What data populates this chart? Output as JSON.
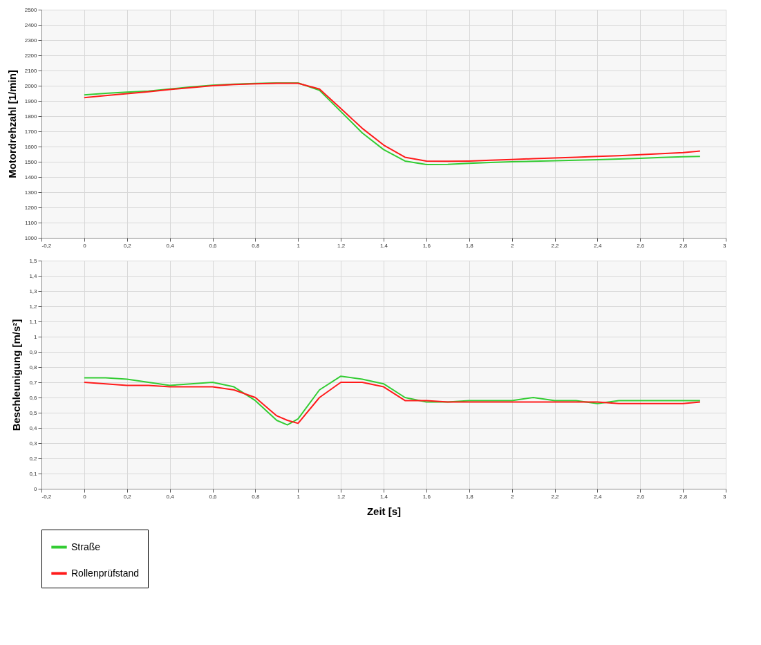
{
  "chart_data": [
    {
      "type": "line",
      "ylabel": "Motordrehzahl [1/min]",
      "grid": true,
      "xlim": [
        -0.2,
        3
      ],
      "xticks": [
        {
          "value": -0.2,
          "label": "-0,2"
        },
        0,
        {
          "value": 0.2,
          "label": "0,2"
        },
        {
          "value": 0.4,
          "label": "0,4"
        },
        {
          "value": 0.6,
          "label": "0,6"
        },
        {
          "value": 0.8,
          "label": "0,8"
        },
        1,
        {
          "value": 1.2,
          "label": "1,2"
        },
        {
          "value": 1.4,
          "label": "1,4"
        },
        {
          "value": 1.6,
          "label": "1,6"
        },
        {
          "value": 1.8,
          "label": "1,8"
        },
        2,
        {
          "value": 2.2,
          "label": "2,2"
        },
        {
          "value": 2.4,
          "label": "2,4"
        },
        {
          "value": 2.6,
          "label": "2,6"
        },
        {
          "value": 2.8,
          "label": "2,8"
        },
        3
      ],
      "ylim": [
        1000,
        2500
      ],
      "yticks": [
        1000,
        1100,
        1200,
        1300,
        1400,
        1500,
        1600,
        1700,
        1800,
        1900,
        2000,
        2100,
        2200,
        2300,
        2400,
        2500
      ],
      "series": [
        {
          "color": "#33cc33",
          "x": [
            0,
            0.1,
            0.2,
            0.3,
            0.4,
            0.5,
            0.6,
            0.7,
            0.8,
            0.9,
            1,
            1.1,
            1.2,
            1.3,
            1.4,
            1.5,
            1.6,
            1.7,
            1.8,
            1.9,
            2,
            2.1,
            2.2,
            2.3,
            2.4,
            2.5,
            2.6,
            2.7,
            2.8,
            2.88
          ],
          "values": [
            1940,
            1950,
            1958,
            1965,
            1978,
            1992,
            2003,
            2010,
            2015,
            2018,
            2018,
            1970,
            1830,
            1690,
            1580,
            1505,
            1482,
            1483,
            1490,
            1495,
            1500,
            1503,
            1507,
            1510,
            1514,
            1518,
            1523,
            1528,
            1533,
            1535
          ]
        },
        {
          "color": "#ff1a1a",
          "x": [
            0,
            0.1,
            0.2,
            0.3,
            0.4,
            0.5,
            0.6,
            0.7,
            0.8,
            0.9,
            1,
            1.1,
            1.2,
            1.3,
            1.4,
            1.5,
            1.6,
            1.7,
            1.8,
            1.9,
            2,
            2.1,
            2.2,
            2.3,
            2.4,
            2.5,
            2.6,
            2.7,
            2.8,
            2.88
          ],
          "values": [
            1922,
            1935,
            1948,
            1960,
            1975,
            1988,
            2000,
            2008,
            2013,
            2016,
            2016,
            1978,
            1850,
            1720,
            1610,
            1530,
            1505,
            1503,
            1505,
            1510,
            1515,
            1520,
            1525,
            1530,
            1535,
            1540,
            1547,
            1553,
            1560,
            1570
          ]
        }
      ]
    },
    {
      "type": "line",
      "ylabel": "Beschleunigung [m/s²]",
      "xlabel": "Zeit [s]",
      "grid": true,
      "legend": "bottom",
      "xlim": [
        -0.2,
        3
      ],
      "xticks": [
        {
          "value": -0.2,
          "label": "-0,2"
        },
        0,
        {
          "value": 0.2,
          "label": "0,2"
        },
        {
          "value": 0.4,
          "label": "0,4"
        },
        {
          "value": 0.6,
          "label": "0,6"
        },
        {
          "value": 0.8,
          "label": "0,8"
        },
        1,
        {
          "value": 1.2,
          "label": "1,2"
        },
        {
          "value": 1.4,
          "label": "1,4"
        },
        {
          "value": 1.6,
          "label": "1,6"
        },
        {
          "value": 1.8,
          "label": "1,8"
        },
        2,
        {
          "value": 2.2,
          "label": "2,2"
        },
        {
          "value": 2.4,
          "label": "2,4"
        },
        {
          "value": 2.6,
          "label": "2,6"
        },
        {
          "value": 2.8,
          "label": "2,8"
        },
        3
      ],
      "ylim": [
        0,
        1.5
      ],
      "yticks": [
        0,
        {
          "value": 0.1,
          "label": "0,1"
        },
        {
          "value": 0.2,
          "label": "0,2"
        },
        {
          "value": 0.3,
          "label": "0,3"
        },
        {
          "value": 0.4,
          "label": "0,4"
        },
        {
          "value": 0.5,
          "label": "0,5"
        },
        {
          "value": 0.6,
          "label": "0,6"
        },
        {
          "value": 0.7,
          "label": "0,7"
        },
        {
          "value": 0.8,
          "label": "0,8"
        },
        {
          "value": 0.9,
          "label": "0,9"
        },
        1,
        {
          "value": 1.1,
          "label": "1,1"
        },
        {
          "value": 1.2,
          "label": "1,2"
        },
        {
          "value": 1.3,
          "label": "1,3"
        },
        {
          "value": 1.4,
          "label": "1,4"
        },
        {
          "value": 1.5,
          "label": "1,5"
        }
      ],
      "series": [
        {
          "name": "Straße",
          "color": "#33cc33",
          "x": [
            0,
            0.1,
            0.2,
            0.3,
            0.4,
            0.5,
            0.6,
            0.7,
            0.8,
            0.9,
            0.95,
            1,
            1.1,
            1.2,
            1.3,
            1.4,
            1.5,
            1.6,
            1.7,
            1.8,
            1.9,
            2,
            2.1,
            2.2,
            2.3,
            2.4,
            2.5,
            2.6,
            2.7,
            2.8,
            2.88
          ],
          "values": [
            0.73,
            0.73,
            0.72,
            0.7,
            0.68,
            0.69,
            0.7,
            0.67,
            0.58,
            0.45,
            0.42,
            0.46,
            0.65,
            0.74,
            0.72,
            0.69,
            0.6,
            0.57,
            0.57,
            0.58,
            0.58,
            0.58,
            0.6,
            0.58,
            0.58,
            0.56,
            0.58,
            0.58,
            0.58,
            0.58,
            0.58
          ]
        },
        {
          "name": "Rollenprüfstand",
          "color": "#ff1a1a",
          "x": [
            0,
            0.1,
            0.2,
            0.3,
            0.4,
            0.5,
            0.6,
            0.7,
            0.8,
            0.9,
            0.95,
            1,
            1.1,
            1.2,
            1.3,
            1.4,
            1.5,
            1.6,
            1.7,
            1.8,
            1.9,
            2,
            2.1,
            2.2,
            2.3,
            2.4,
            2.5,
            2.6,
            2.7,
            2.8,
            2.88
          ],
          "values": [
            0.7,
            0.69,
            0.68,
            0.68,
            0.67,
            0.67,
            0.67,
            0.65,
            0.6,
            0.48,
            0.45,
            0.43,
            0.6,
            0.7,
            0.7,
            0.67,
            0.58,
            0.58,
            0.57,
            0.57,
            0.57,
            0.57,
            0.57,
            0.57,
            0.57,
            0.57,
            0.56,
            0.56,
            0.56,
            0.56,
            0.57
          ]
        }
      ]
    }
  ]
}
